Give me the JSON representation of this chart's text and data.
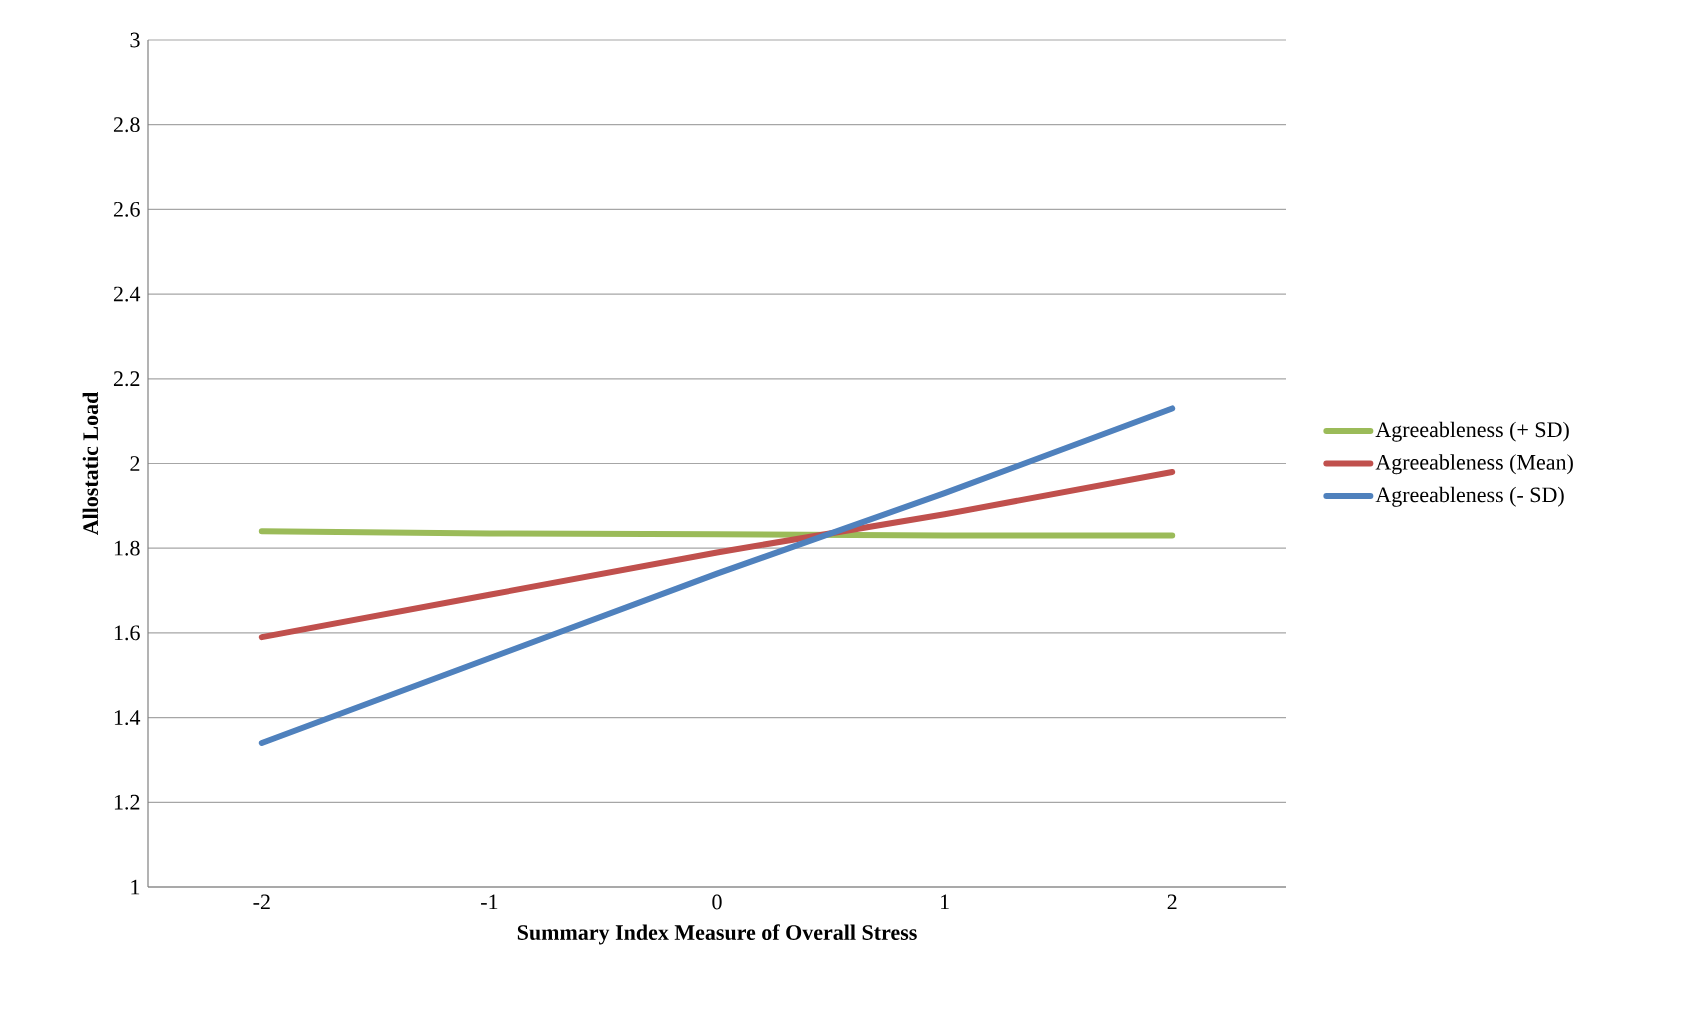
{
  "chart_data": {
    "type": "line",
    "xlabel": "Summary Index Measure of Overall Stress",
    "ylabel": "Allostatic Load",
    "x": [
      -2,
      -1,
      0,
      1,
      2
    ],
    "series": [
      {
        "name": "Agreeableness (+ SD)",
        "color": "#9bbb59",
        "values": [
          1.84,
          1.835,
          1.833,
          1.83,
          1.83
        ]
      },
      {
        "name": "Agreeableness (Mean)",
        "color": "#c0504d",
        "values": [
          1.59,
          1.69,
          1.79,
          1.88,
          1.98
        ]
      },
      {
        "name": "Agreeableness (- SD)",
        "color": "#4f81bd",
        "values": [
          1.34,
          1.54,
          1.74,
          1.93,
          2.13
        ]
      }
    ],
    "xlim": [
      -2.5,
      2.5
    ],
    "xticks": [
      -2,
      -1,
      0,
      1,
      2
    ],
    "ylim": [
      1,
      3
    ],
    "yticks": [
      1,
      1.2,
      1.4,
      1.6,
      1.8,
      2,
      2.2,
      2.4,
      2.6,
      2.8,
      3
    ],
    "grid": "y",
    "legend": "right",
    "marker": "none",
    "line_style": "solid"
  }
}
